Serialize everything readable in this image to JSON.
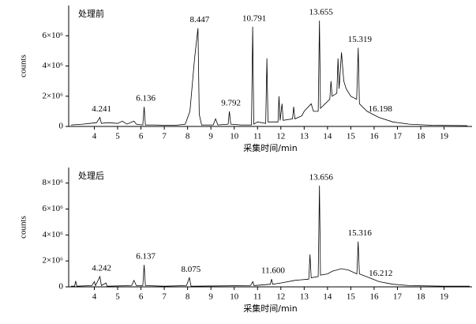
{
  "chart_data": [
    {
      "type": "line",
      "title": "处理前",
      "xlabel": "采集时间/min",
      "ylabel": "counts",
      "color": "#000000",
      "xlim": [
        2.9,
        20.2
      ],
      "ylim": [
        0,
        8000000
      ],
      "xticks": [
        4,
        5,
        6,
        7,
        8,
        9,
        10,
        11,
        12,
        13,
        14,
        15,
        16,
        17,
        18,
        19
      ],
      "yticks": [
        0,
        {
          "value": 2000000,
          "label": "2×10⁶"
        },
        {
          "value": 4000000,
          "label": "4×10⁶"
        },
        {
          "value": 6000000,
          "label": "6×10⁶"
        }
      ],
      "x": [
        3.0,
        3.5,
        3.8,
        4.1,
        4.241,
        4.3,
        4.6,
        5.0,
        5.2,
        5.4,
        5.7,
        5.8,
        6.08,
        6.136,
        6.19,
        6.6,
        7.0,
        7.5,
        7.9,
        8.1,
        8.3,
        8.447,
        8.5,
        8.6,
        9.1,
        9.2,
        9.3,
        9.74,
        9.792,
        9.85,
        10.3,
        10.74,
        10.791,
        10.84,
        11.0,
        11.35,
        11.4,
        11.45,
        11.88,
        11.92,
        11.97,
        12.05,
        12.1,
        12.5,
        12.55,
        12.6,
        12.9,
        13.0,
        13.3,
        13.4,
        13.6,
        13.655,
        13.7,
        13.9,
        14.1,
        14.15,
        14.2,
        14.4,
        14.45,
        14.5,
        14.6,
        14.7,
        14.8,
        15.0,
        15.25,
        15.319,
        15.37,
        15.7,
        16.198,
        16.8,
        17.5,
        18.5,
        20.0
      ],
      "values": [
        100000,
        150000,
        200000,
        250000,
        600000,
        200000,
        250000,
        200000,
        350000,
        150000,
        350000,
        150000,
        100000,
        1300000,
        100000,
        100000,
        80000,
        80000,
        150000,
        1000000,
        4500000,
        6500000,
        800000,
        100000,
        100000,
        500000,
        100000,
        150000,
        1000000,
        150000,
        100000,
        100000,
        6600000,
        150000,
        300000,
        200000,
        4500000,
        300000,
        300000,
        2000000,
        400000,
        1500000,
        400000,
        500000,
        1300000,
        500000,
        700000,
        1000000,
        1500000,
        1000000,
        1000000,
        7000000,
        1200000,
        1500000,
        1800000,
        3000000,
        2000000,
        2200000,
        4500000,
        2500000,
        4900000,
        3000000,
        2500000,
        2000000,
        1800000,
        5200000,
        1500000,
        1000000,
        600000,
        300000,
        150000,
        80000,
        50000
      ],
      "peaks": [
        4.241,
        6.136,
        8.447,
        9.792,
        10.791,
        13.655,
        15.319,
        16.198
      ]
    },
    {
      "type": "line",
      "title": "处理后",
      "xlabel": "采集时间/min",
      "ylabel": "counts",
      "color": "#000000",
      "xlim": [
        2.9,
        20.2
      ],
      "ylim": [
        0,
        9200000
      ],
      "xticks": [
        4,
        5,
        6,
        7,
        8,
        9,
        10,
        11,
        12,
        13,
        14,
        15,
        16,
        17,
        18,
        19
      ],
      "yticks": [
        0,
        {
          "value": 2000000,
          "label": "2×10⁶"
        },
        {
          "value": 4000000,
          "label": "4×10⁶"
        },
        {
          "value": 6000000,
          "label": "6×10⁶"
        },
        {
          "value": 8000000,
          "label": "8×10⁶"
        }
      ],
      "x": [
        3.0,
        3.15,
        3.2,
        3.25,
        3.9,
        4.0,
        4.05,
        4.242,
        4.3,
        4.5,
        4.55,
        5.6,
        5.7,
        5.8,
        6.08,
        6.137,
        6.19,
        7.0,
        7.95,
        8.075,
        8.15,
        10.7,
        10.8,
        10.85,
        11.55,
        11.6,
        11.65,
        12.0,
        12.6,
        13.2,
        13.25,
        13.3,
        13.6,
        13.656,
        13.7,
        14.0,
        14.2,
        14.6,
        14.9,
        15.26,
        15.316,
        15.37,
        15.8,
        16.212,
        16.8,
        17.5,
        19.0,
        20.1
      ],
      "values": [
        50000,
        50000,
        450000,
        50000,
        100000,
        400000,
        100000,
        800000,
        100000,
        300000,
        50000,
        100000,
        500000,
        100000,
        100000,
        1700000,
        100000,
        50000,
        100000,
        700000,
        50000,
        100000,
        400000,
        100000,
        200000,
        600000,
        200000,
        300000,
        500000,
        600000,
        2500000,
        700000,
        800000,
        7800000,
        900000,
        1000000,
        1200000,
        1400000,
        1300000,
        1000000,
        3500000,
        1000000,
        700000,
        400000,
        200000,
        100000,
        50000,
        50000
      ],
      "peaks": [
        4.242,
        6.137,
        8.075,
        {
          "value": 11.6,
          "label": "11.600"
        },
        13.656,
        15.316,
        16.212
      ]
    }
  ]
}
